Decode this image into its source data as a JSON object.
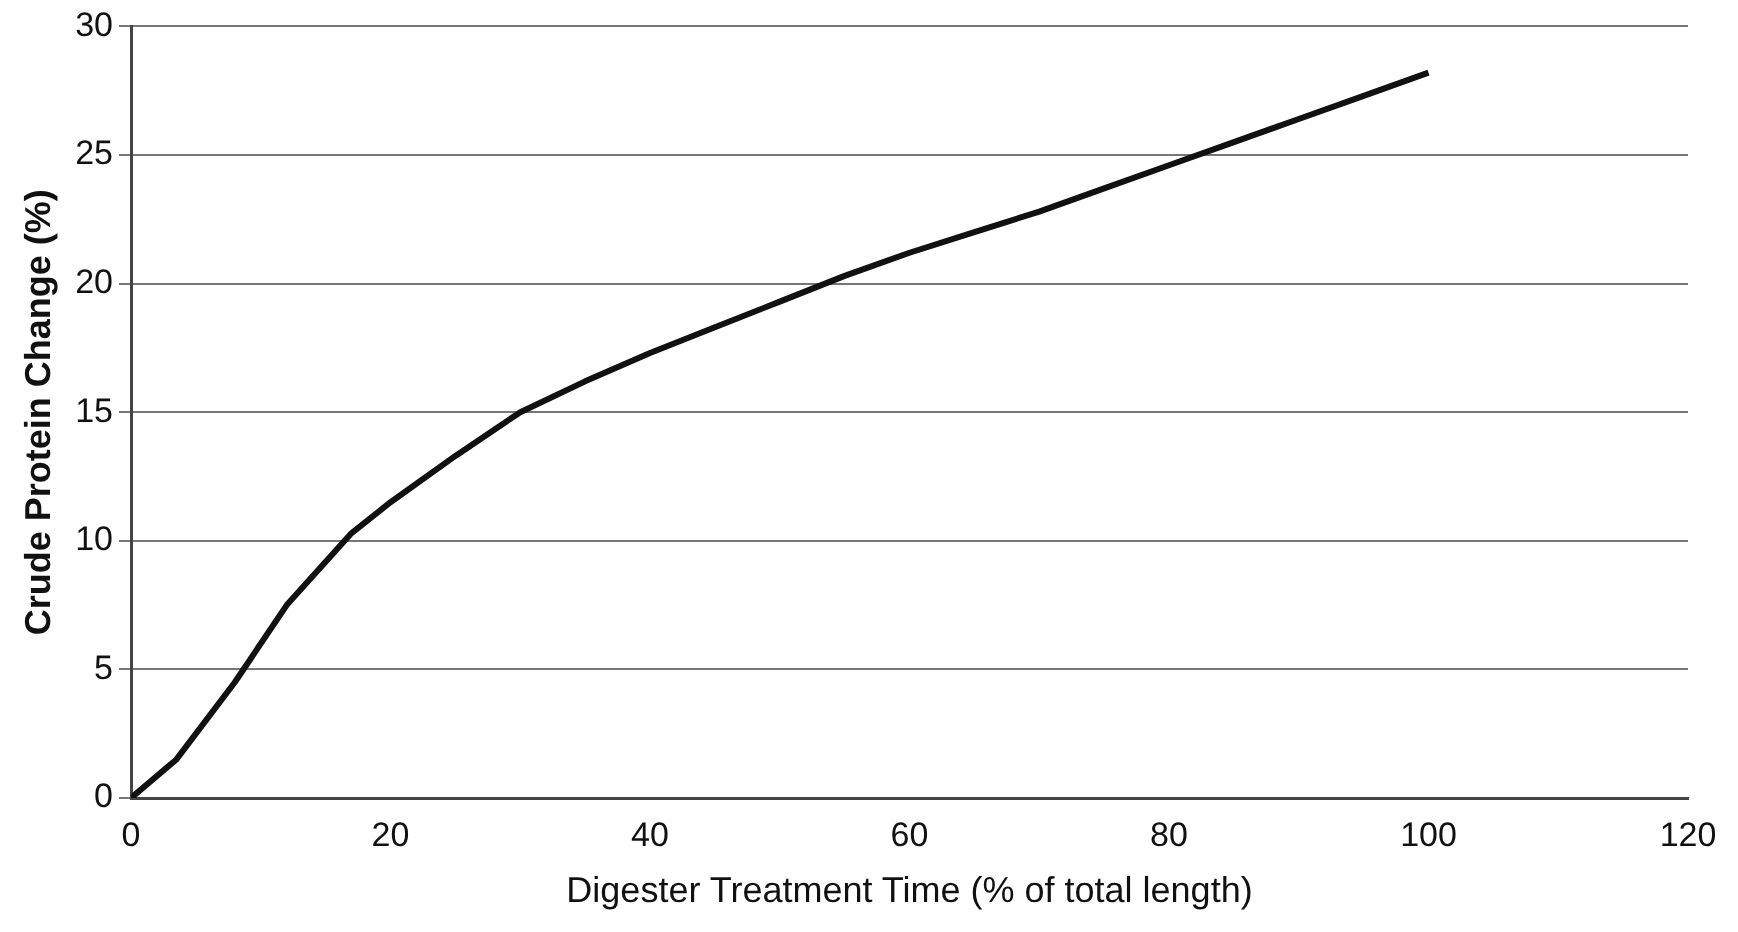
{
  "chart_data": {
    "type": "line",
    "xlabel": "Digester Treatment Time (% of total length)",
    "ylabel": "Crude Protein Change (%)",
    "x": [
      0,
      3.5,
      8,
      12,
      17,
      20,
      25,
      30,
      35,
      40,
      45,
      50,
      55,
      60,
      65,
      70,
      75,
      80,
      85,
      90,
      95,
      100
    ],
    "series": [
      {
        "color": "#111111",
        "values": [
          0,
          1.5,
          4.5,
          7.5,
          10.3,
          11.5,
          13.3,
          15,
          16.2,
          17.3,
          18.3,
          19.3,
          20.3,
          21.2,
          22,
          22.8,
          23.7,
          24.6,
          25.5,
          26.4,
          27.3,
          28.2
        ]
      }
    ],
    "xlim": [
      0,
      120
    ],
    "xticks": [
      0,
      20,
      40,
      60,
      80,
      100,
      120
    ],
    "ylim": [
      0,
      30
    ],
    "yticks": [
      0,
      5,
      10,
      15,
      20,
      25,
      30
    ],
    "grid": "y",
    "legend": false,
    "marker": "none",
    "line_style": "solid"
  }
}
